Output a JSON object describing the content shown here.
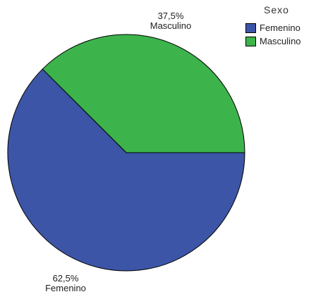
{
  "chart_data": {
    "type": "pie",
    "legend_title": "Sexo",
    "legend_placement": "top-right",
    "slices": [
      {
        "label": "Femenino",
        "value": 62.5,
        "value_label": "62,5%",
        "color": "#3D55A6"
      },
      {
        "label": "Masculino",
        "value": 37.5,
        "value_label": "37,5%",
        "color": "#3DB34C"
      }
    ]
  }
}
